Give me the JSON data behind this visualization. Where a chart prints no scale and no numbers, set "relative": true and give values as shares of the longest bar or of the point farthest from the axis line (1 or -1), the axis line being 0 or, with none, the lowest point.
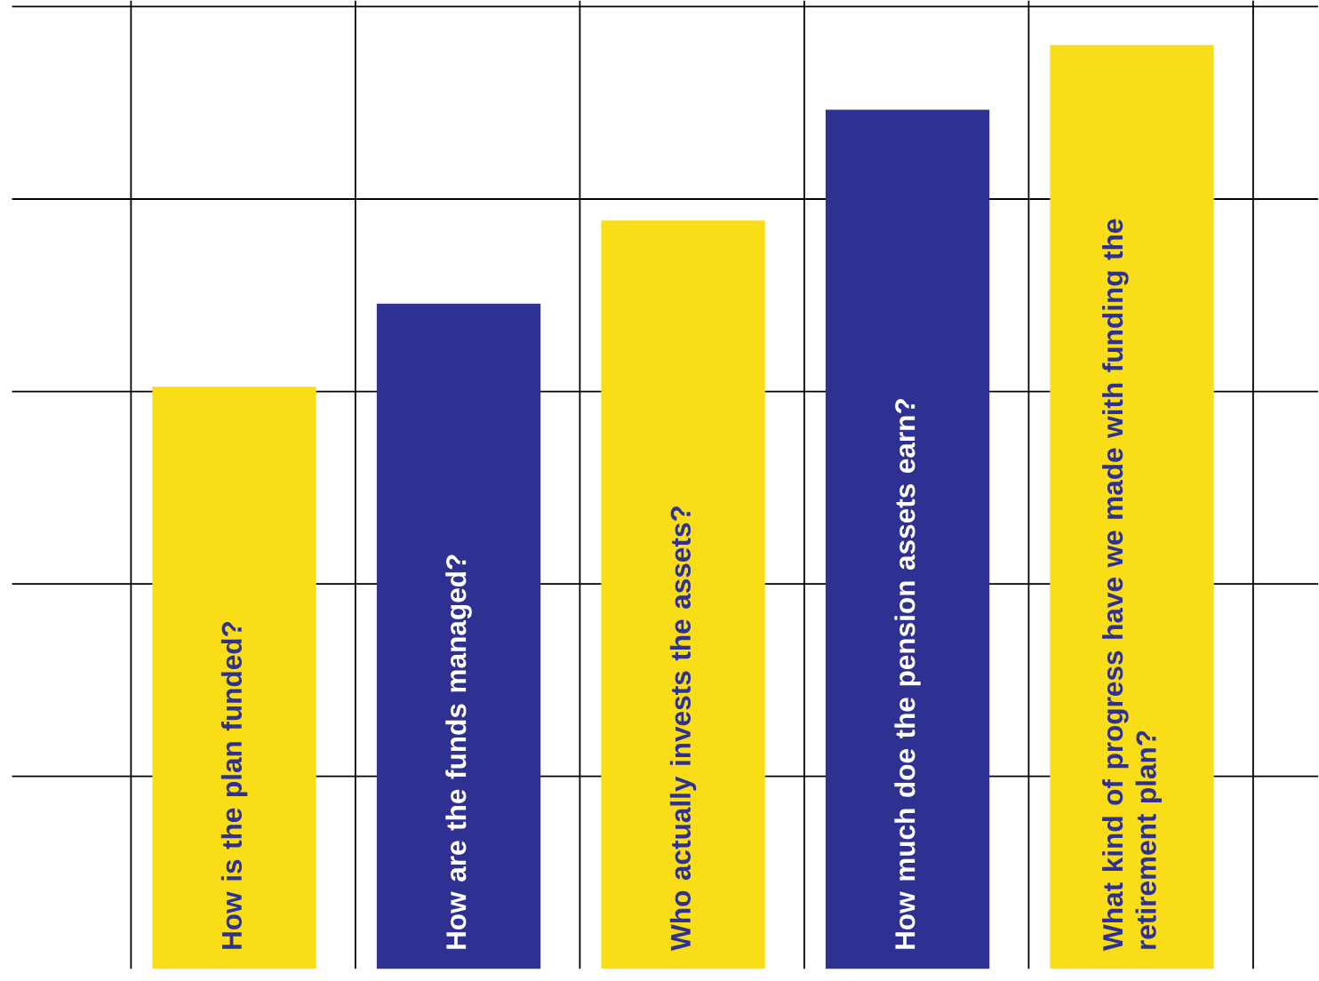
{
  "chart_data": {
    "type": "bar",
    "relative": true,
    "categories": [
      "How is the plan funded?",
      "How are the funds managed?",
      "Who actually invests the assets?",
      "How much doe the pension assets earn?",
      "What kind of progress have we made with funding the retirement plan?"
    ],
    "values": [
      0.63,
      0.72,
      0.81,
      0.93,
      1
    ],
    "colors": [
      "#f9dd16",
      "#2e3192",
      "#f9dd16",
      "#2e3192",
      "#f9dd16"
    ],
    "grid": true
  }
}
